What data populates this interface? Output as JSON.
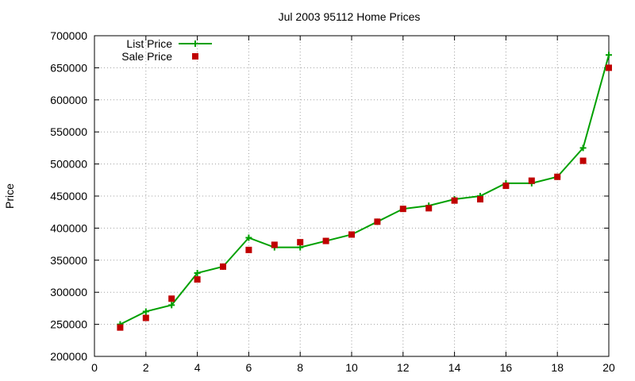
{
  "chart_data": {
    "type": "line",
    "title": "Jul 2003 95112 Home Prices",
    "xlabel": "",
    "ylabel": "Price",
    "xlim": [
      0,
      20
    ],
    "ylim": [
      200000,
      700000
    ],
    "x_ticks": [
      0,
      2,
      4,
      6,
      8,
      10,
      12,
      14,
      16,
      18,
      20
    ],
    "y_ticks": [
      200000,
      250000,
      300000,
      350000,
      400000,
      450000,
      500000,
      550000,
      600000,
      650000,
      700000
    ],
    "grid": true,
    "legend_position": "top-left",
    "series": [
      {
        "name": "List Price",
        "style": "line-with-plus-markers",
        "color": "#00a000",
        "x": [
          1,
          2,
          3,
          4,
          5,
          6,
          7,
          8,
          9,
          10,
          11,
          12,
          13,
          14,
          15,
          16,
          17,
          18,
          19,
          20
        ],
        "y": [
          250000,
          270000,
          280000,
          330000,
          340000,
          385000,
          370000,
          370000,
          380000,
          390000,
          410000,
          430000,
          435000,
          445000,
          450000,
          470000,
          470000,
          480000,
          525000,
          670000
        ]
      },
      {
        "name": "Sale Price",
        "style": "square-points",
        "color": "#c00000",
        "x": [
          1,
          2,
          3,
          4,
          5,
          6,
          7,
          8,
          9,
          10,
          11,
          12,
          13,
          14,
          15,
          16,
          17,
          18,
          19,
          20
        ],
        "y": [
          245000,
          260000,
          290000,
          320000,
          340000,
          366000,
          374000,
          378000,
          380000,
          390000,
          410000,
          430000,
          431000,
          443000,
          445000,
          466000,
          474000,
          480000,
          505000,
          650000
        ]
      }
    ]
  }
}
